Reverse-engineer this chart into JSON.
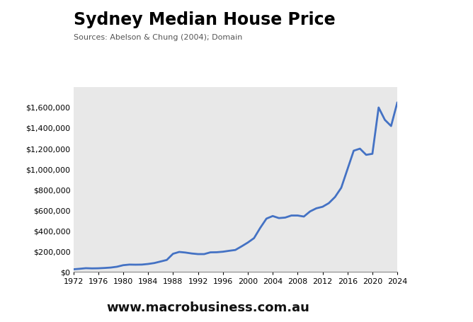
{
  "title": "Sydney Median House Price",
  "subtitle": "Sources: Abelson & Chung (2004); Domain",
  "website": "www.macrobusiness.com.au",
  "line_color": "#4472C4",
  "line_width": 2.0,
  "bg_color": "#E8E8E8",
  "fig_bg_color": "#FFFFFF",
  "years": [
    1972,
    1973,
    1974,
    1975,
    1976,
    1977,
    1978,
    1979,
    1980,
    1981,
    1982,
    1983,
    1984,
    1985,
    1986,
    1987,
    1988,
    1989,
    1990,
    1991,
    1992,
    1993,
    1994,
    1995,
    1996,
    1997,
    1998,
    1999,
    2000,
    2001,
    2002,
    2003,
    2004,
    2005,
    2006,
    2007,
    2008,
    2009,
    2010,
    2011,
    2012,
    2013,
    2014,
    2015,
    2016,
    2017,
    2018,
    2019,
    2020,
    2021,
    2022,
    2023,
    2024
  ],
  "prices": [
    27000,
    32000,
    38000,
    36000,
    37000,
    40000,
    44000,
    52000,
    67000,
    73000,
    72000,
    73000,
    79000,
    88000,
    103000,
    118000,
    178000,
    196000,
    190000,
    181000,
    175000,
    175000,
    192000,
    193000,
    198000,
    207000,
    215000,
    250000,
    287000,
    330000,
    430000,
    520000,
    545000,
    525000,
    530000,
    550000,
    550000,
    540000,
    590000,
    620000,
    635000,
    670000,
    730000,
    820000,
    1000000,
    1180000,
    1200000,
    1140000,
    1150000,
    1600000,
    1480000,
    1420000,
    1650000
  ],
  "xlim": [
    1972,
    2024
  ],
  "ylim": [
    0,
    1800000
  ],
  "yticks": [
    0,
    200000,
    400000,
    600000,
    800000,
    1000000,
    1200000,
    1400000,
    1600000
  ],
  "xticks": [
    1972,
    1976,
    1980,
    1984,
    1988,
    1992,
    1996,
    2000,
    2004,
    2008,
    2012,
    2016,
    2020,
    2024
  ],
  "macro_red": "#CC0000",
  "macro_text_color": "#FFFFFF",
  "title_fontsize": 17,
  "subtitle_fontsize": 8,
  "tick_fontsize": 8,
  "website_fontsize": 13
}
